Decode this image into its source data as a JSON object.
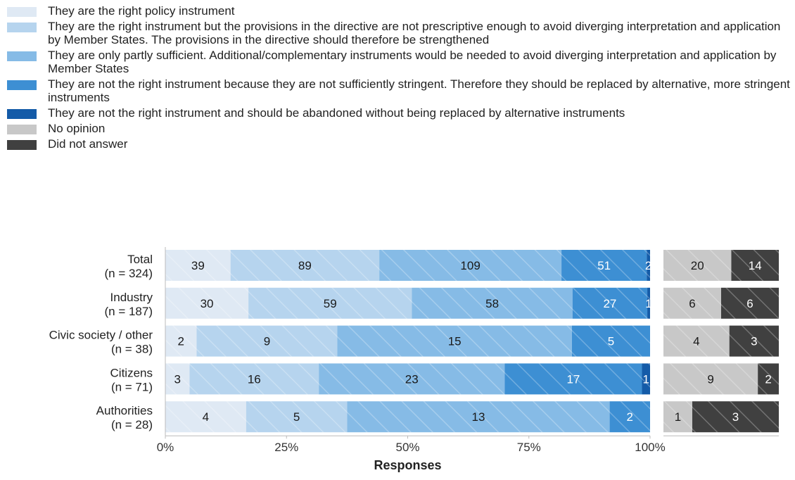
{
  "chart_data": {
    "type": "bar",
    "orientation": "horizontal",
    "stacked": true,
    "normalized": true,
    "xlabel": "Responses",
    "xlim": [
      0,
      100
    ],
    "x_ticks": [
      "0%",
      "25%",
      "50%",
      "75%",
      "100%"
    ],
    "grid": false,
    "legend_position": "top",
    "categories": [
      {
        "name": "Total",
        "n": "(n = 324)"
      },
      {
        "name": "Industry",
        "n": "(n = 187)"
      },
      {
        "name": "Civic society / other",
        "n": "(n = 38)"
      },
      {
        "name": "Citizens",
        "n": "(n = 71)"
      },
      {
        "name": "Authorities",
        "n": "(n = 28)"
      }
    ],
    "series": [
      {
        "name": "They are the right policy instrument",
        "color": "#dfe9f4",
        "values": [
          39,
          30,
          2,
          3,
          4
        ]
      },
      {
        "name": "They are the right instrument but the provisions in the directive are not prescriptive enough to avoid diverging interpretation and application by Member States. The provisions in the directive should therefore be strengthened",
        "color": "#b6d4ee",
        "values": [
          89,
          59,
          9,
          16,
          5
        ]
      },
      {
        "name": "They are only partly sufficient. Additional/complementary instruments would be needed to avoid diverging interpretation and application by Member States",
        "color": "#86bbe6",
        "values": [
          109,
          58,
          15,
          23,
          13
        ]
      },
      {
        "name": "They are not the right instrument because they are not sufficiently stringent. Therefore they should be replaced by alternative, more stringent instruments",
        "color": "#3d8fd3",
        "values": [
          51,
          27,
          5,
          17,
          2
        ]
      },
      {
        "name": "They are not the right instrument and should be abandoned without being replaced by alternative instruments",
        "color": "#145ba8",
        "values": [
          2,
          1,
          0,
          1,
          0
        ]
      }
    ],
    "side_series": [
      {
        "name": "No opinion",
        "color": "#c8c8c8",
        "values": [
          20,
          6,
          4,
          9,
          1
        ]
      },
      {
        "name": "Did not answer",
        "color": "#404040",
        "values": [
          14,
          6,
          3,
          2,
          3
        ]
      }
    ]
  }
}
